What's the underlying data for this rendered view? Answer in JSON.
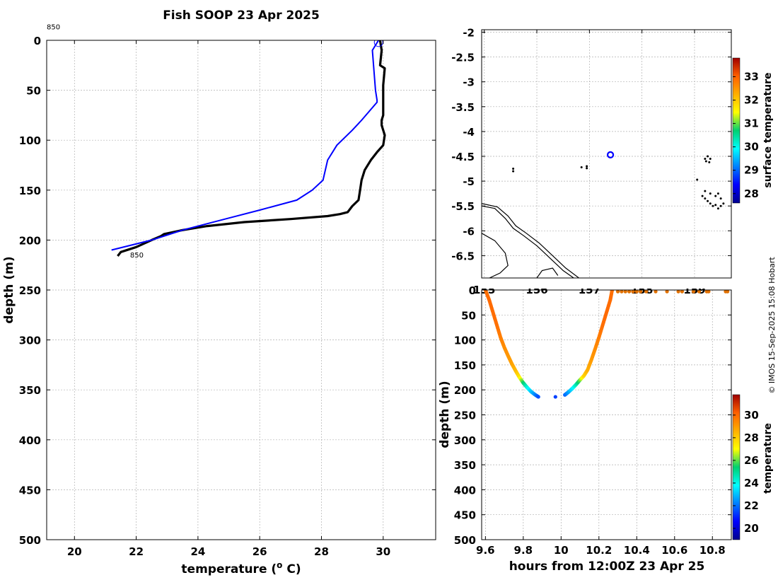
{
  "chart_data": [
    {
      "type": "line",
      "title": "Fish SOOP 23 Apr 2025",
      "xlabel": "temperature (",
      "xlabel_sup": "o",
      "xlabel_unit": " C)",
      "ylabel": "depth (m)",
      "xlim": [
        19.1,
        31.7
      ],
      "ylim": [
        500,
        0
      ],
      "xticks": [
        20,
        22,
        24,
        26,
        28,
        30
      ],
      "yticks": [
        0,
        50,
        100,
        150,
        200,
        250,
        300,
        350,
        400,
        450,
        500
      ],
      "annotations": [
        {
          "text": "850",
          "x": 19.1,
          "y": -11
        },
        {
          "text": "850",
          "x": 21.8,
          "y": 216
        }
      ],
      "series": [
        {
          "name": "cast profile (black, down/up)",
          "color": "#000000",
          "x": [
            29.9,
            29.95,
            29.9,
            30.05,
            30.0,
            30.0,
            29.95,
            29.95,
            30.05,
            30.0,
            29.8,
            29.6,
            29.4,
            29.3,
            29.25,
            29.2,
            29.0,
            28.85,
            28.6,
            28.2,
            27.0,
            25.5,
            24.3,
            23.5,
            22.9,
            22.8,
            22.5,
            22.0,
            21.5,
            21.4
          ],
          "y": [
            0,
            10,
            25,
            28,
            45,
            75,
            80,
            85,
            95,
            105,
            112,
            120,
            130,
            140,
            150,
            160,
            166,
            172,
            174,
            176,
            179,
            182,
            186,
            190,
            194,
            196,
            200,
            207,
            212,
            216
          ]
        },
        {
          "name": "reference profile (blue)",
          "color": "#0000ff",
          "x": [
            29.85,
            29.65,
            29.7,
            29.75,
            29.8,
            29.8,
            29.3,
            29.0,
            28.5,
            28.2,
            28.05,
            27.7,
            27.2,
            26.0,
            25.0,
            23.5,
            22.5,
            21.2
          ],
          "y": [
            0,
            10,
            30,
            50,
            60,
            62,
            80,
            90,
            105,
            120,
            140,
            150,
            160,
            170,
            178,
            190,
            200,
            210
          ]
        }
      ],
      "marker": {
        "x": 29.85,
        "y": 2
      }
    },
    {
      "type": "map",
      "xlim": [
        154.95,
        159.7
      ],
      "ylim": [
        -6.95,
        -1.95
      ],
      "xticks": [
        "155",
        "156",
        "157",
        "158",
        "159"
      ],
      "yticks": [
        "-2",
        "-2.5",
        "-3",
        "-3.5",
        "-4",
        "-4.5",
        "-5",
        "-5.5",
        "-6",
        "-6.5"
      ],
      "station": {
        "lon": 157.4,
        "lat": -4.47,
        "color": "#0000ff"
      },
      "islands": [
        [
          155.55,
          -4.8
        ],
        [
          155.55,
          -4.75
        ],
        [
          156.85,
          -4.72
        ],
        [
          156.95,
          -4.74
        ],
        [
          156.95,
          -4.7
        ],
        [
          159.2,
          -4.55
        ],
        [
          159.25,
          -4.5
        ],
        [
          159.3,
          -4.55
        ],
        [
          159.28,
          -4.62
        ],
        [
          159.22,
          -4.6
        ],
        [
          159.05,
          -4.97
        ],
        [
          159.15,
          -5.3
        ],
        [
          159.2,
          -5.35
        ],
        [
          159.25,
          -5.4
        ],
        [
          159.3,
          -5.45
        ],
        [
          159.35,
          -5.5
        ],
        [
          159.4,
          -5.48
        ],
        [
          159.45,
          -5.55
        ],
        [
          159.5,
          -5.5
        ],
        [
          159.55,
          -5.45
        ],
        [
          159.2,
          -5.2
        ],
        [
          159.3,
          -5.25
        ],
        [
          159.4,
          -5.3
        ],
        [
          159.5,
          -5.35
        ],
        [
          159.45,
          -5.25
        ]
      ],
      "coastlines": [
        [
          [
            154.95,
            -5.5
          ],
          [
            155.2,
            -5.55
          ],
          [
            155.4,
            -5.75
          ],
          [
            155.55,
            -5.95
          ],
          [
            155.75,
            -6.1
          ],
          [
            156.0,
            -6.3
          ],
          [
            156.25,
            -6.55
          ],
          [
            156.5,
            -6.8
          ],
          [
            156.7,
            -6.95
          ]
        ],
        [
          [
            154.95,
            -5.45
          ],
          [
            155.25,
            -5.52
          ],
          [
            155.45,
            -5.7
          ],
          [
            155.6,
            -5.9
          ],
          [
            155.8,
            -6.05
          ],
          [
            156.05,
            -6.25
          ],
          [
            156.3,
            -6.5
          ],
          [
            156.55,
            -6.75
          ],
          [
            156.8,
            -6.95
          ]
        ],
        [
          [
            154.95,
            -6.05
          ],
          [
            155.2,
            -6.2
          ],
          [
            155.4,
            -6.45
          ],
          [
            155.45,
            -6.7
          ],
          [
            155.3,
            -6.85
          ],
          [
            155.1,
            -6.95
          ]
        ],
        [
          [
            156.0,
            -6.95
          ],
          [
            156.1,
            -6.8
          ],
          [
            156.3,
            -6.75
          ],
          [
            156.4,
            -6.9
          ]
        ]
      ],
      "colorbar": {
        "label": "surface temperature",
        "min": 27.6,
        "max": 33.8,
        "ticks": [
          28,
          29,
          30,
          31,
          32,
          33
        ]
      }
    },
    {
      "type": "scatter",
      "xlabel": "hours from 12:00Z 23 Apr 25",
      "ylabel": "depth (m)",
      "xlim": [
        9.58,
        10.9
      ],
      "ylim": [
        500,
        0
      ],
      "xticks": [
        9.6,
        9.8,
        10,
        10.2,
        10.4,
        10.6,
        10.8
      ],
      "yticks": [
        0,
        50,
        100,
        150,
        200,
        250,
        300,
        350,
        400,
        450,
        500
      ],
      "colorbar": {
        "label": "temperature",
        "min": 19,
        "max": 31.8,
        "ticks": [
          20,
          22,
          24,
          26,
          28,
          30
        ]
      },
      "down_cast": {
        "t": [
          9.6,
          9.62,
          9.64,
          9.66,
          9.68,
          9.7,
          9.72,
          9.74,
          9.76,
          9.78,
          9.8,
          9.82,
          9.84,
          9.86,
          9.88
        ],
        "depth": [
          0,
          20,
          45,
          70,
          95,
          115,
          132,
          148,
          162,
          175,
          186,
          195,
          203,
          209,
          214
        ],
        "temp": [
          29.9,
          30.0,
          29.95,
          29.9,
          29.6,
          29.3,
          29.1,
          28.9,
          28.4,
          27.5,
          25.5,
          24.3,
          23.2,
          22.5,
          21.6
        ]
      },
      "bottom_point": {
        "t": 9.97,
        "depth": 214,
        "temp": 21.4
      },
      "up_cast": {
        "t": [
          10.02,
          10.04,
          10.06,
          10.08,
          10.1,
          10.12,
          10.14,
          10.16,
          10.18,
          10.2,
          10.22,
          10.24,
          10.26,
          10.27
        ],
        "depth": [
          210,
          204,
          197,
          189,
          180,
          172,
          160,
          140,
          118,
          95,
          70,
          45,
          20,
          0
        ],
        "temp": [
          21.8,
          22.6,
          23.5,
          24.6,
          26.0,
          27.8,
          28.6,
          29.0,
          29.3,
          29.6,
          29.9,
          30.0,
          29.95,
          29.9
        ]
      },
      "surface": {
        "t": [
          10.3,
          10.32,
          10.34,
          10.36,
          10.38,
          10.4,
          10.42,
          10.45,
          10.5,
          10.56,
          10.62,
          10.64,
          10.7,
          10.73,
          10.77,
          10.78,
          10.87,
          10.88
        ],
        "depth": [
          3,
          3,
          3,
          3,
          3,
          3,
          3,
          3,
          3,
          3,
          3,
          3,
          3,
          3,
          3,
          3,
          3,
          3
        ],
        "temp": [
          29.9,
          29.9,
          29.9,
          29.9,
          29.9,
          29.9,
          29.9,
          29.9,
          29.9,
          29.9,
          29.9,
          29.9,
          29.9,
          29.9,
          29.9,
          29.9,
          29.9,
          29.9
        ]
      }
    }
  ],
  "credit": "© IMOS 15-Sep-2025 15:08 Hobart"
}
